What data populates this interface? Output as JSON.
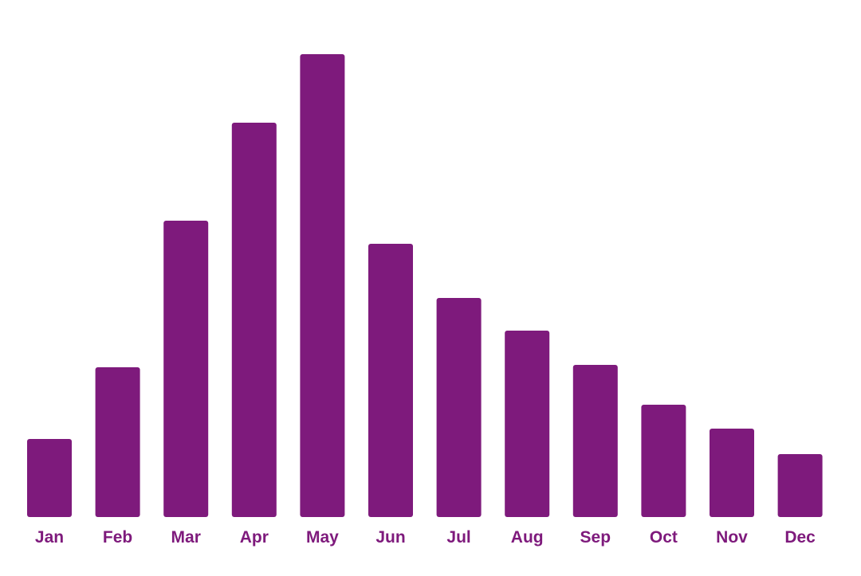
{
  "chart_data": {
    "type": "bar",
    "categories": [
      "Jan",
      "Feb",
      "Mar",
      "Apr",
      "May",
      "Jun",
      "Jul",
      "Aug",
      "Sep",
      "Oct",
      "Nov",
      "Dec"
    ],
    "values": [
      98,
      188,
      372,
      495,
      581,
      343,
      275,
      234,
      191,
      141,
      111,
      79
    ],
    "ylim": [
      0,
      600
    ],
    "grid": false,
    "legend": "none",
    "title": "",
    "xlabel": "",
    "ylabel": "",
    "colors": {
      "bar": "#7e1a7c",
      "tick_label": "#7e1a7c"
    }
  }
}
